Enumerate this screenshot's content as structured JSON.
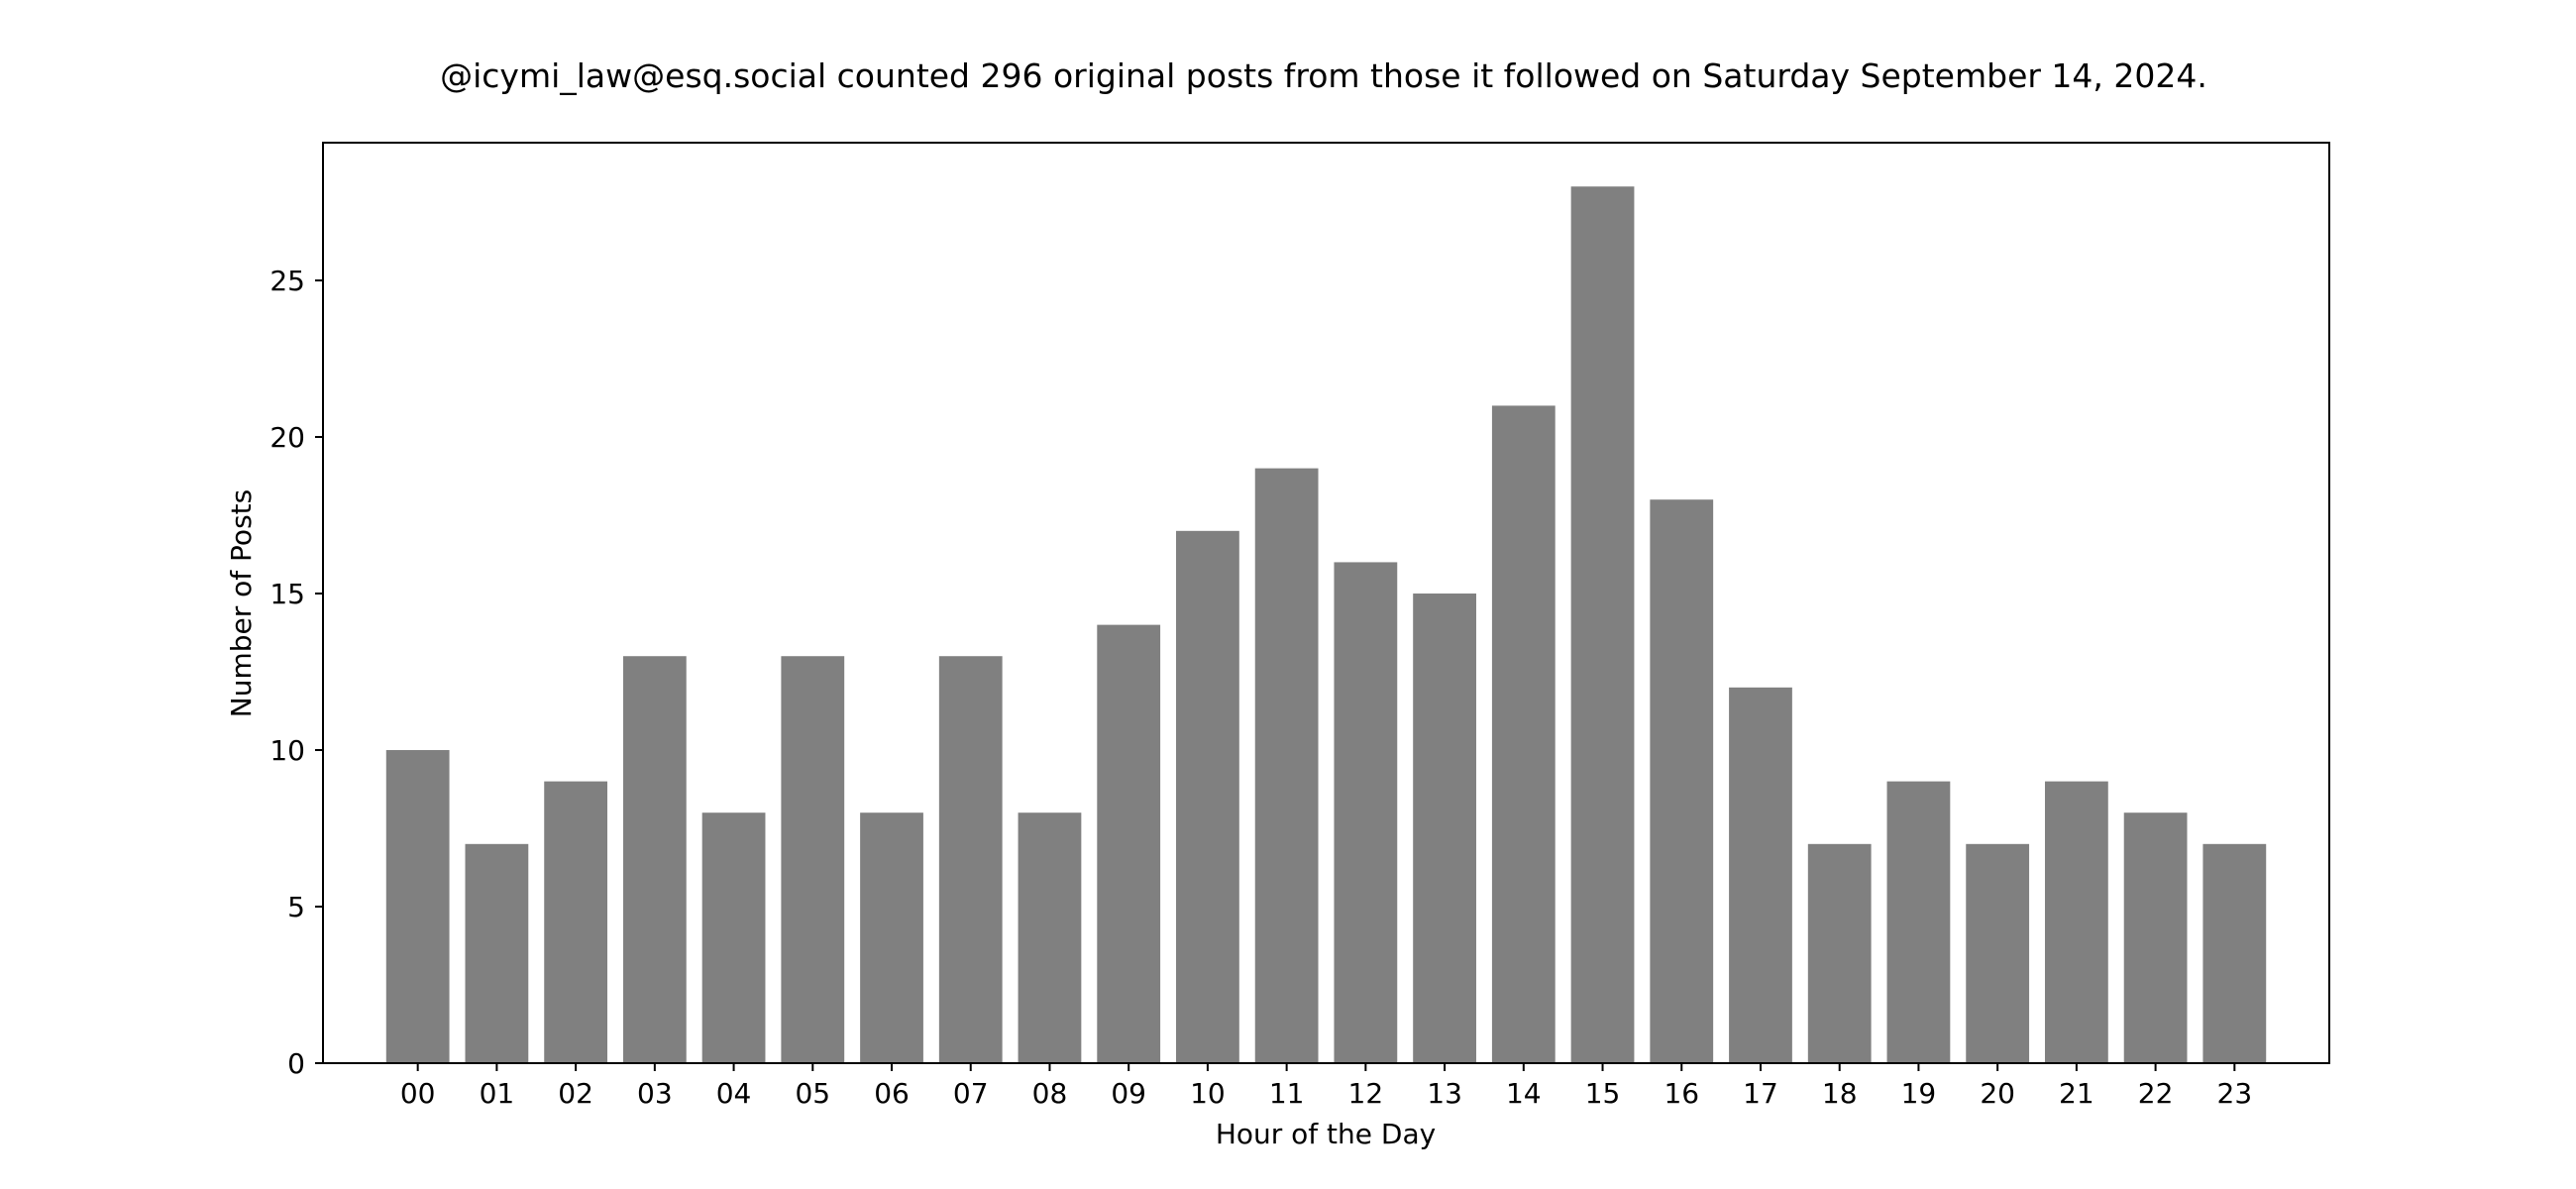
{
  "chart_data": {
    "type": "bar",
    "title": "@icymi_law@esq.social counted 296 original posts from those it followed on Saturday September 14, 2024.",
    "xlabel": "Hour of the Day",
    "ylabel": "Number of Posts",
    "categories": [
      "00",
      "01",
      "02",
      "03",
      "04",
      "05",
      "06",
      "07",
      "08",
      "09",
      "10",
      "11",
      "12",
      "13",
      "14",
      "15",
      "16",
      "17",
      "18",
      "19",
      "20",
      "21",
      "22",
      "23"
    ],
    "values": [
      10,
      7,
      9,
      13,
      8,
      13,
      8,
      13,
      8,
      14,
      17,
      19,
      16,
      15,
      21,
      28,
      18,
      12,
      7,
      9,
      7,
      9,
      8,
      7
    ],
    "ylim": [
      0,
      29.4
    ],
    "yticks": [
      0,
      5,
      10,
      15,
      20,
      25
    ],
    "grid": false,
    "bar_color": "#808080",
    "axis_color": "#000000"
  }
}
